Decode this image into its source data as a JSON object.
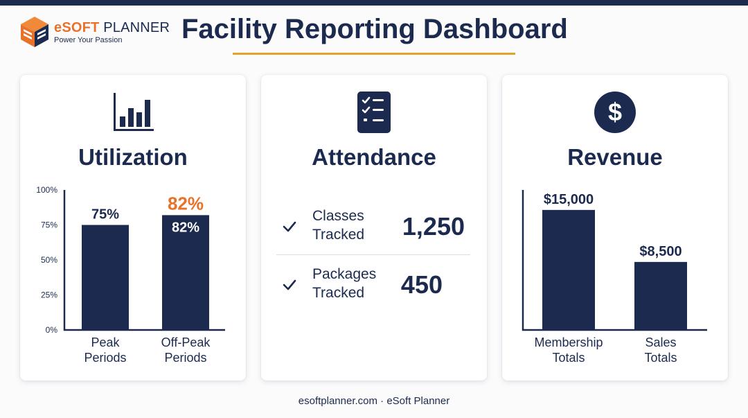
{
  "header": {
    "logo_brand_e": "e",
    "logo_brand_soft": "SOFT",
    "logo_brand_planner": " PLANNER",
    "logo_tagline": "Power Your Passion",
    "title": "Facility Reporting Dashboard"
  },
  "colors": {
    "navy": "#1b2a4e",
    "orange": "#e8722a",
    "gold": "#e2a428"
  },
  "utilization": {
    "title": "Utilization",
    "icon": "bar-chart-icon",
    "chart_data": {
      "type": "bar",
      "categories": [
        "Peak\nPeriods",
        "Off-Peak\nPeriods"
      ],
      "category_lines": [
        [
          "Peak",
          "Periods"
        ],
        [
          "Off-Peak",
          "Periods"
        ]
      ],
      "values": [
        75,
        82
      ],
      "value_labels": [
        "75%",
        "82%"
      ],
      "highlight_label": "82%",
      "yticks": [
        "100%",
        "75%",
        "50%",
        "25%",
        "0%"
      ],
      "ylim": [
        0,
        100
      ]
    }
  },
  "attendance": {
    "title": "Attendance",
    "icon": "checklist-icon",
    "rows": [
      {
        "label_line1": "Classes",
        "label_line2": "Tracked",
        "value": "1,250"
      },
      {
        "label_line1": "Packages",
        "label_line2": "Tracked",
        "value": "450"
      }
    ]
  },
  "revenue": {
    "title": "Revenue",
    "icon": "dollar-icon",
    "chart_data": {
      "type": "bar",
      "categories": [
        "Membership\nTotals",
        "Sales\nTotals"
      ],
      "category_lines": [
        [
          "Membership",
          "Totals"
        ],
        [
          "Sales",
          "Totals"
        ]
      ],
      "values": [
        15000,
        8500
      ],
      "value_labels": [
        "$15,000",
        "$8,500"
      ],
      "ylim": [
        0,
        17500
      ]
    }
  },
  "footer": {
    "text": "esoftplanner.com · eSoft Planner"
  }
}
